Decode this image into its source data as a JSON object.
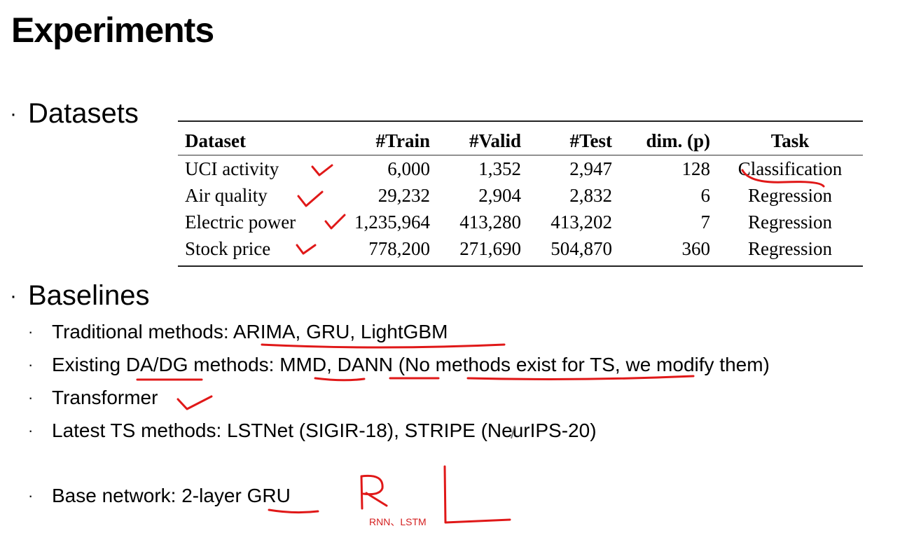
{
  "title": "Experiments",
  "sections": {
    "datasets_label": "Datasets",
    "baselines_label": "Baselines"
  },
  "table": {
    "headers": {
      "dataset": "Dataset",
      "train": "#Train",
      "valid": "#Valid",
      "test": "#Test",
      "dim": "dim. (p)",
      "task": "Task"
    },
    "rows": [
      {
        "dataset": "UCI activity",
        "train": "6,000",
        "valid": "1,352",
        "test": "2,947",
        "dim": "128",
        "task": "Classification"
      },
      {
        "dataset": "Air quality",
        "train": "29,232",
        "valid": "2,904",
        "test": "2,832",
        "dim": "6",
        "task": "Regression"
      },
      {
        "dataset": "Electric power",
        "train": "1,235,964",
        "valid": "413,280",
        "test": "413,202",
        "dim": "7",
        "task": "Regression"
      },
      {
        "dataset": "Stock price",
        "train": "778,200",
        "valid": "271,690",
        "test": "504,870",
        "dim": "360",
        "task": "Regression"
      }
    ]
  },
  "baselines": [
    "Traditional methods: ARIMA, GRU, LightGBM",
    "Existing DA/DG methods: MMD, DANN (No methods exist for TS, we modify them)",
    "Transformer",
    "Latest TS methods: LSTNet (SIGIR-18), STRIPE (NeurIPS-20)"
  ],
  "base_network": "Base network: 2-layer GRU",
  "annotation_note": "RNN、LSTM",
  "colors": {
    "ink": "#e01818",
    "text": "#000000"
  }
}
